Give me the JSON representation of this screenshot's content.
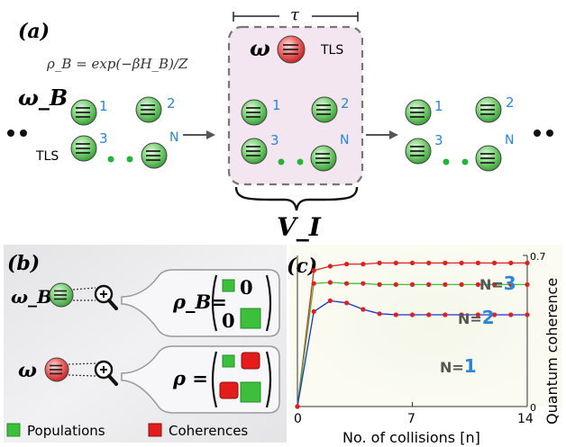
{
  "panel_a": {
    "label": "(a)",
    "rho_b_formula": "ρ_B = exp(−βH_B)/Z",
    "omega_b": "ω_B",
    "tau": "τ",
    "omega": "ω",
    "tls": "TLS",
    "nums": [
      "1",
      "2",
      "3",
      "N"
    ],
    "interaction": "V_I"
  },
  "panel_b": {
    "label": "(b)",
    "omega_b": "ω_B",
    "omega": "ω",
    "rho_b": "ρ_B=",
    "rho": "ρ =",
    "zero": "0",
    "legend": [
      "Populations",
      "Coherences"
    ]
  },
  "panel_c": {
    "label": "(c)",
    "xlabel": "No. of collisions [n]",
    "ylabel": "Quantum coherence",
    "xticks": [
      "0",
      "7",
      "14"
    ],
    "yticks": [
      "0",
      "0.7"
    ],
    "series_labels": [
      {
        "prefix": "N=",
        "num": "3"
      },
      {
        "prefix": "N=",
        "num": "2"
      },
      {
        "prefix": "N=",
        "num": "1"
      }
    ]
  },
  "colors": {
    "green": "#3cc03c",
    "red": "#e02020",
    "blue_text": "#2a86d8",
    "panel_bg": "#efeef0",
    "box_fill": "#f3e6f1"
  },
  "chart_data": {
    "type": "line",
    "xlabel": "No. of collisions [n]",
    "ylabel": "Quantum coherence",
    "xlim": [
      0,
      14
    ],
    "ylim": [
      0,
      0.7
    ],
    "x": [
      0,
      1,
      2,
      3,
      4,
      5,
      6,
      7,
      8,
      9,
      10,
      11,
      12,
      13,
      14
    ],
    "series": [
      {
        "name": "N=3",
        "color": "#e02020",
        "values": [
          0,
          0.63,
          0.65,
          0.66,
          0.66,
          0.665,
          0.665,
          0.665,
          0.665,
          0.665,
          0.665,
          0.665,
          0.665,
          0.665,
          0.665
        ]
      },
      {
        "name": "N=2",
        "color": "#3cc03c",
        "values": [
          0,
          0.57,
          0.575,
          0.57,
          0.57,
          0.565,
          0.565,
          0.565,
          0.565,
          0.565,
          0.565,
          0.565,
          0.565,
          0.565,
          0.565
        ]
      },
      {
        "name": "N=1",
        "color": "#2030d0",
        "values": [
          0,
          0.44,
          0.49,
          0.48,
          0.45,
          0.43,
          0.425,
          0.425,
          0.425,
          0.425,
          0.425,
          0.425,
          0.425,
          0.425,
          0.425
        ]
      }
    ]
  }
}
